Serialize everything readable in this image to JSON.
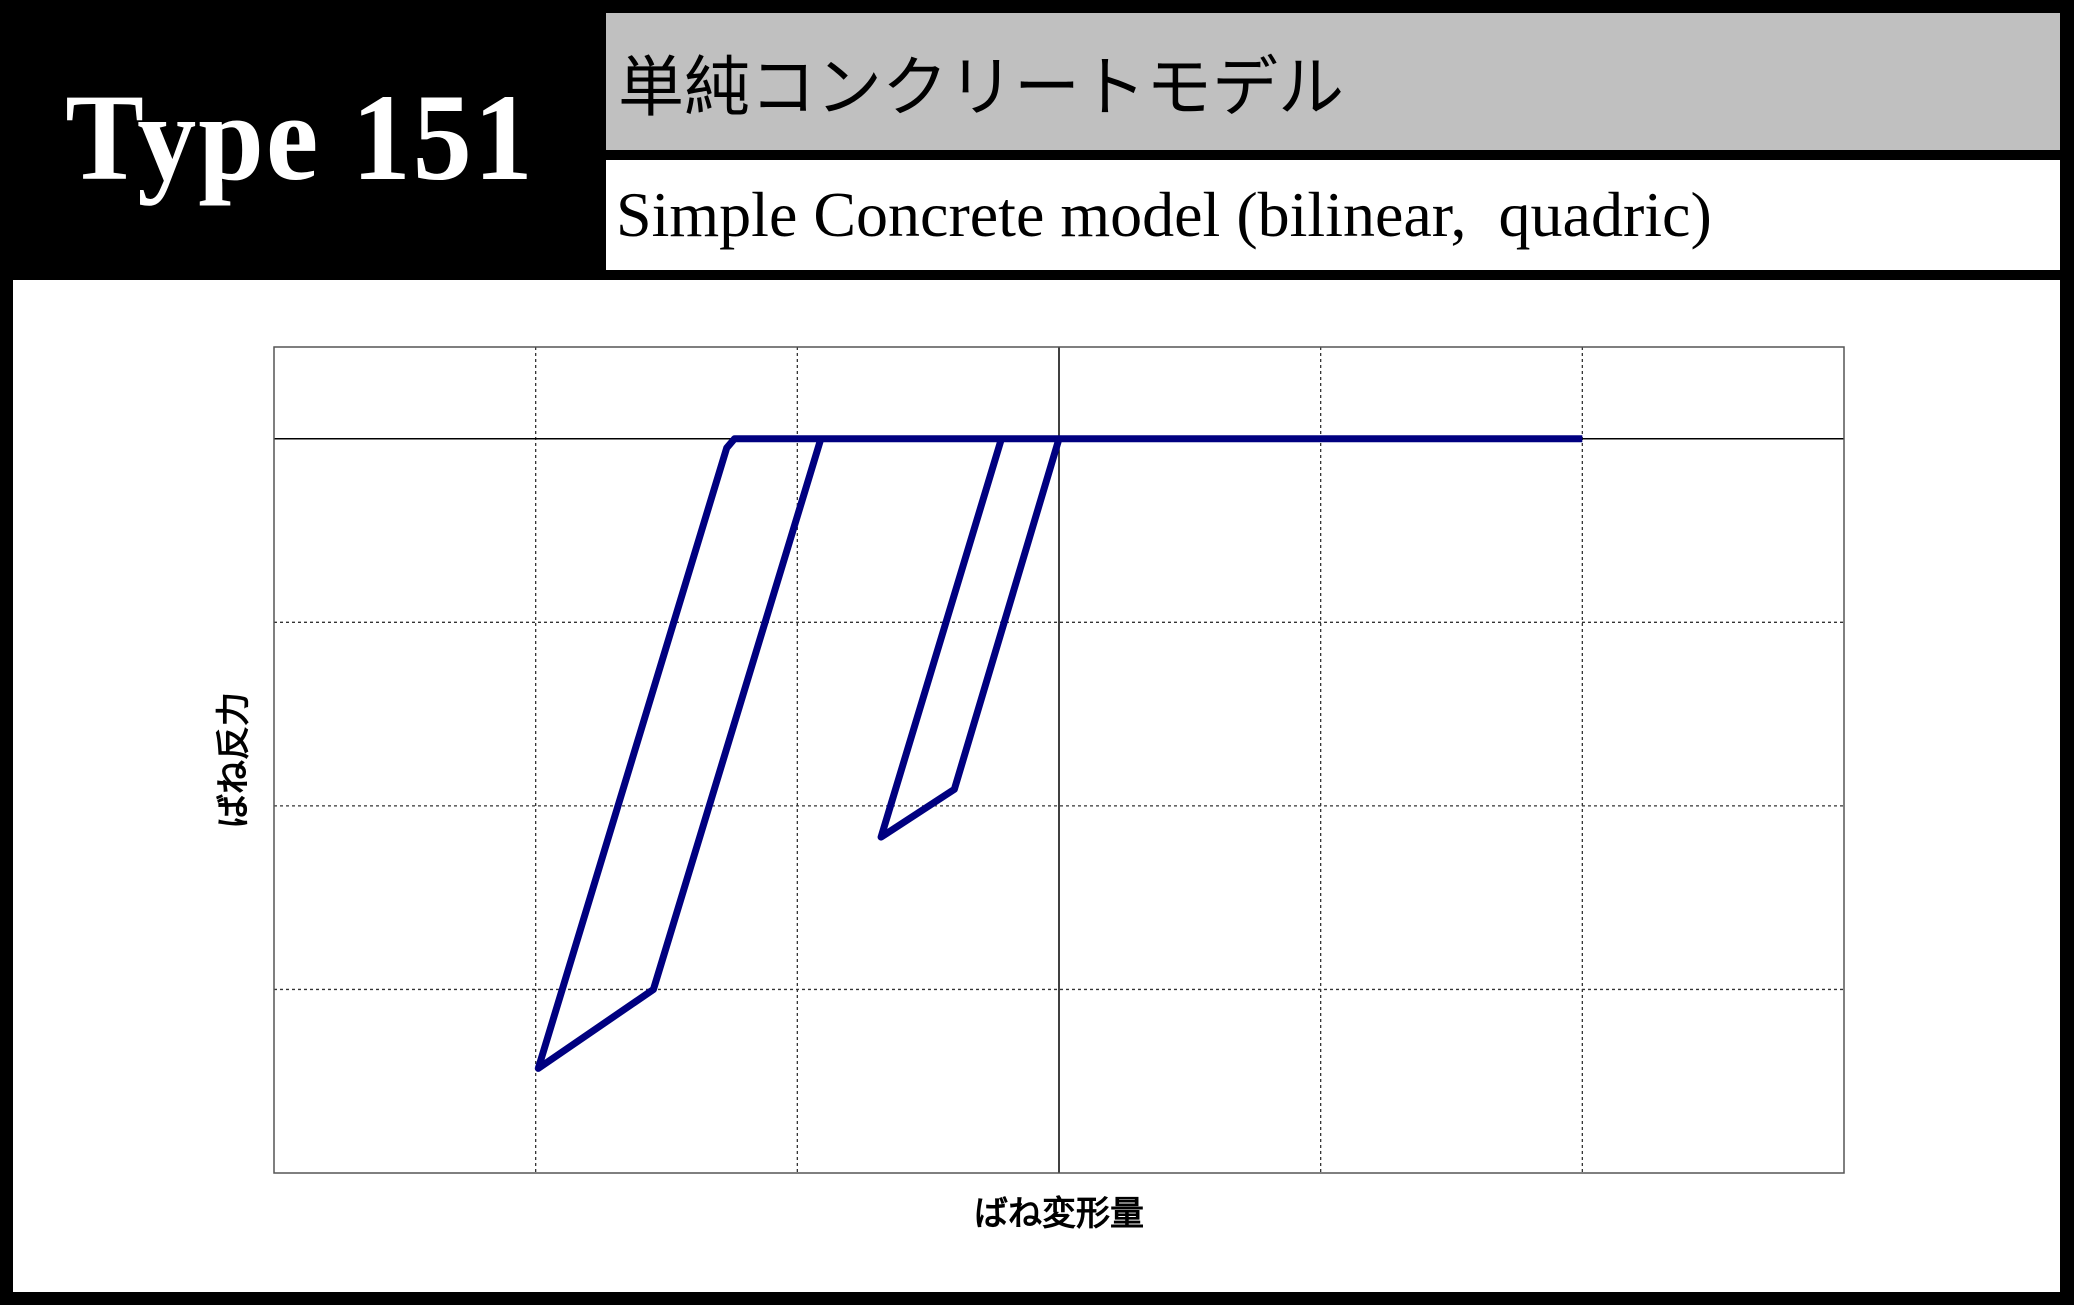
{
  "header": {
    "type_label": "Type 151",
    "title_jp": "単純コンクリートモデル",
    "title_en": "Simple Concrete model (bilinear,  quadric)"
  },
  "chart_data": {
    "type": "line",
    "title": "",
    "xlabel": "ばね変形量",
    "ylabel": "ばね反力",
    "xlim": [
      -3,
      3
    ],
    "ylim": [
      -4,
      0.5
    ],
    "x_gridlines": [
      -2,
      -1,
      0,
      1,
      2
    ],
    "y_gridlines": [
      -3,
      -2,
      -1,
      0
    ],
    "grid": true,
    "tick_labels_shown": false,
    "line_color": "#000080",
    "series": [
      {
        "x": [
          0,
          -0.4,
          -0.68,
          -0.22,
          -0.91,
          -1.55,
          -1.99,
          -1.27,
          -1.24,
          2
        ],
        "y": [
          0,
          -1.91,
          -2.17,
          0,
          0,
          -3.0,
          -3.43,
          -0.05,
          0,
          0
        ]
      }
    ]
  }
}
